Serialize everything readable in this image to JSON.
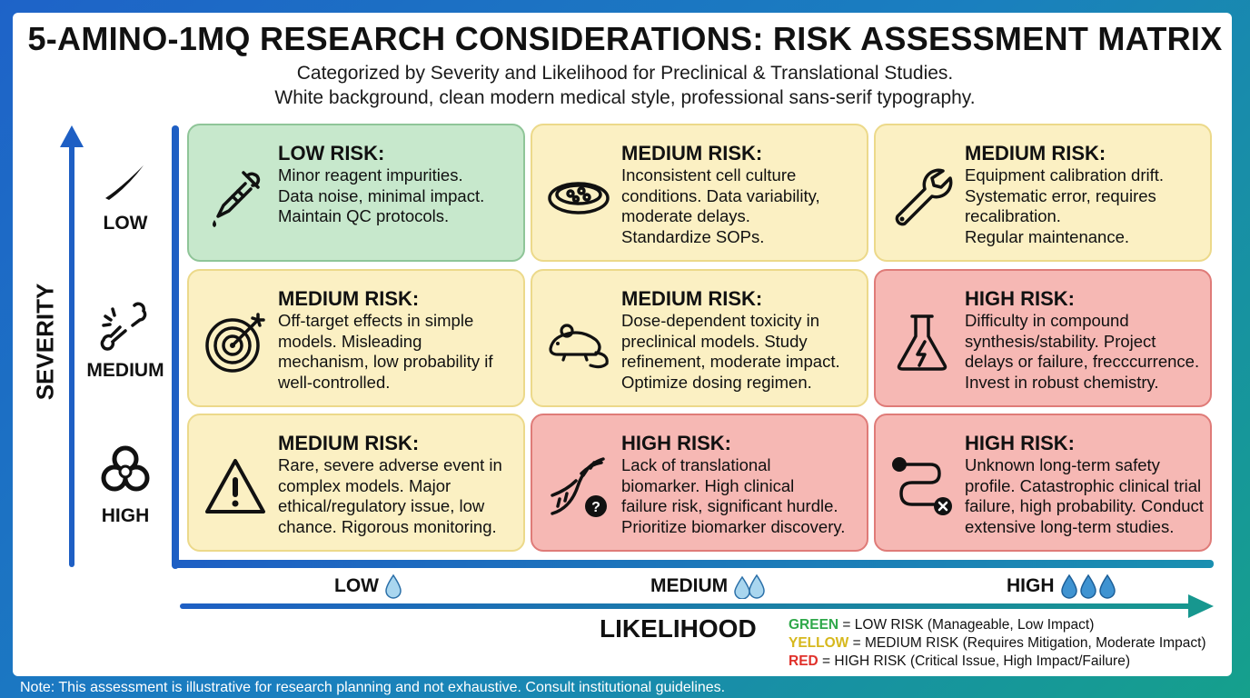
{
  "title": "5-AMINO-1MQ RESEARCH CONSIDERATIONS: RISK ASSESSMENT MATRIX",
  "subtitle_1": "Categorized by Severity and Likelihood for Preclinical & Translational Studies.",
  "subtitle_2": "White background, clean modern medical style, professional sans-serif typography.",
  "severity_axis": {
    "label": "SEVERITY",
    "rows": [
      {
        "label": "LOW",
        "icon": "scratch-icon"
      },
      {
        "label": "MEDIUM",
        "icon": "broken-bone-icon"
      },
      {
        "label": "HIGH",
        "icon": "biohazard-icon"
      }
    ]
  },
  "likelihood_axis": {
    "label": "LIKELIHOOD",
    "columns": [
      {
        "label": "LOW",
        "drops": 1
      },
      {
        "label": "MEDIUM",
        "drops": 2
      },
      {
        "label": "HIGH",
        "drops": 3
      }
    ]
  },
  "cells": [
    {
      "level": "green",
      "icon": "dropper-icon",
      "heading": "LOW RISK:",
      "lines": [
        "Minor reagent impurities.",
        "Data noise, minimal impact.",
        "Maintain QC protocols."
      ]
    },
    {
      "level": "yellow",
      "icon": "petri-dish-icon",
      "heading": "MEDIUM RISK:",
      "lines": [
        "Inconsistent cell culture",
        "conditions. Data variability,",
        "moderate delays.",
        "Standardize SOPs."
      ]
    },
    {
      "level": "yellow",
      "icon": "wrench-icon",
      "heading": "MEDIUM RISK:",
      "lines": [
        "Equipment calibration drift.",
        "Systematic error, requires",
        "recalibration.",
        "Regular maintenance."
      ]
    },
    {
      "level": "yellow",
      "icon": "target-icon",
      "heading": "MEDIUM RISK:",
      "lines": [
        "Off-target effects in simple",
        "models. Misleading",
        "mechanism, low probability if",
        "well-controlled."
      ]
    },
    {
      "level": "yellow",
      "icon": "mouse-icon",
      "heading": "MEDIUM RISK:",
      "lines": [
        "Dose-dependent toxicity in",
        "preclinical models. Study",
        "refinement, moderate impact.",
        "Optimize dosing regimen."
      ]
    },
    {
      "level": "red",
      "icon": "flask-icon",
      "heading": "HIGH RISK:",
      "lines": [
        "Difficulty in compound",
        "synthesis/stability. Project",
        "delays or failure, frecccurrence.",
        "Invest in robust chemistry."
      ]
    },
    {
      "level": "yellow",
      "icon": "warning-icon",
      "heading": "MEDIUM RISK:",
      "lines": [
        "Rare, severe adverse event in",
        "complex models. Major",
        "ethical/regulatory issue, low",
        "chance. Rigorous monitoring."
      ]
    },
    {
      "level": "red",
      "icon": "dna-question-icon",
      "heading": "HIGH RISK:",
      "lines": [
        "Lack of translational",
        "biomarker. High clinical",
        "failure risk, significant hurdle.",
        "Prioritize biomarker discovery."
      ]
    },
    {
      "level": "red",
      "icon": "path-fail-icon",
      "heading": "HIGH RISK:",
      "lines": [
        "Unknown long-term safety",
        "profile. Catastrophic clinical trial",
        "failure, high probability. Conduct",
        "extensive long-term studies."
      ]
    }
  ],
  "legend": {
    "green_key": "GREEN",
    "green_text": " = LOW RISK (Manageable, Low Impact)",
    "yellow_key": "YELLOW",
    "yellow_text": " = MEDIUM RISK (Requires Mitigation, Moderate Impact)",
    "red_key": "RED",
    "red_text": " = HIGH RISK (Critical Issue, High Impact/Failure)"
  },
  "colors": {
    "green": "#c7e8cc",
    "yellow": "#fbf0c3",
    "red": "#f6b8b4",
    "axis_blue": "#1e5fc4"
  },
  "note": "Note: This assessment is illustrative for research planning and not exhaustive. Consult institutional guidelines."
}
